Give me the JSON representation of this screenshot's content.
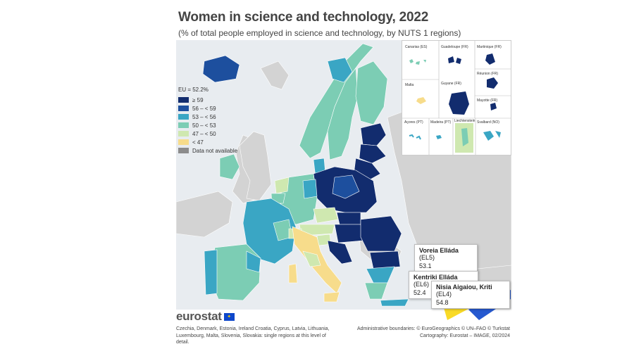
{
  "title": "Women in science and technology, 2022",
  "subtitle": "(% of total people employed in science and technology, by NUTS 1 regions)",
  "legend": {
    "header": "EU = 52.2%",
    "classes": [
      {
        "label": "≥ 59",
        "color": "#122c6e"
      },
      {
        "label": "56 – < 59",
        "color": "#1d4f9e"
      },
      {
        "label": "53 – < 56",
        "color": "#3aa6c4"
      },
      {
        "label": "50 – < 53",
        "color": "#7ccdb4"
      },
      {
        "label": "47 – < 50",
        "color": "#cfe8b0"
      },
      {
        "label": "< 47",
        "color": "#f7dc8b"
      },
      {
        "label": "Data not available",
        "color": "#8c8c8c"
      }
    ]
  },
  "insets": [
    {
      "label": "Canarias (ES)",
      "scale": "0  100"
    },
    {
      "label": "Guadeloupe (FR)",
      "scale": "0  25"
    },
    {
      "label": "Martinique (FR)",
      "scale": "0  20"
    },
    {
      "label": "Réunion (FR)",
      "scale": "0  20"
    },
    {
      "label": "Malta",
      "scale": "0  10"
    },
    {
      "label": "Guyane (FR)",
      "scale": "0  100"
    },
    {
      "label": "Mayotte (FR)",
      "scale": "0  15"
    },
    {
      "label": "Açores (PT)",
      "scale": "0  50"
    },
    {
      "label": "Madeira (PT)",
      "scale": "0  20"
    },
    {
      "label": "Liechtenstein",
      "scale": "0  5"
    },
    {
      "label": "Svalbard (NO)",
      "scale": "0  100"
    }
  ],
  "callouts": [
    {
      "name": "Voreia Elláda",
      "code": "(EL5)",
      "value": "53.1"
    },
    {
      "name": "Kentriki Elláda",
      "code": "(EL6)",
      "value": "52.4"
    },
    {
      "name": "Nisia Aigaiou, Kriti",
      "code": "(EL4)",
      "value": "54.8"
    }
  ],
  "branding": {
    "logo_text": "eurostat"
  },
  "footnote": "Czechia, Denmark, Estonia, Ireland Croatia, Cyprus, Latvia, Lithuania, Luxembourg, Malta, Slovenia, Slovakia: single regions at this level of detail.",
  "credits": {
    "line1": "Administrative boundaries: © EuroGeographics © UN–FAO © Turkstat",
    "line2": "Cartography: Eurostat – IMAGE, 02/2024"
  },
  "colors": {
    "sea": "#e8ecf0",
    "non_eu_land": "#d3d3d3",
    "border": "#ffffff",
    "accent_yellow": "#f8d300",
    "accent_blue": "#0e47cb"
  }
}
